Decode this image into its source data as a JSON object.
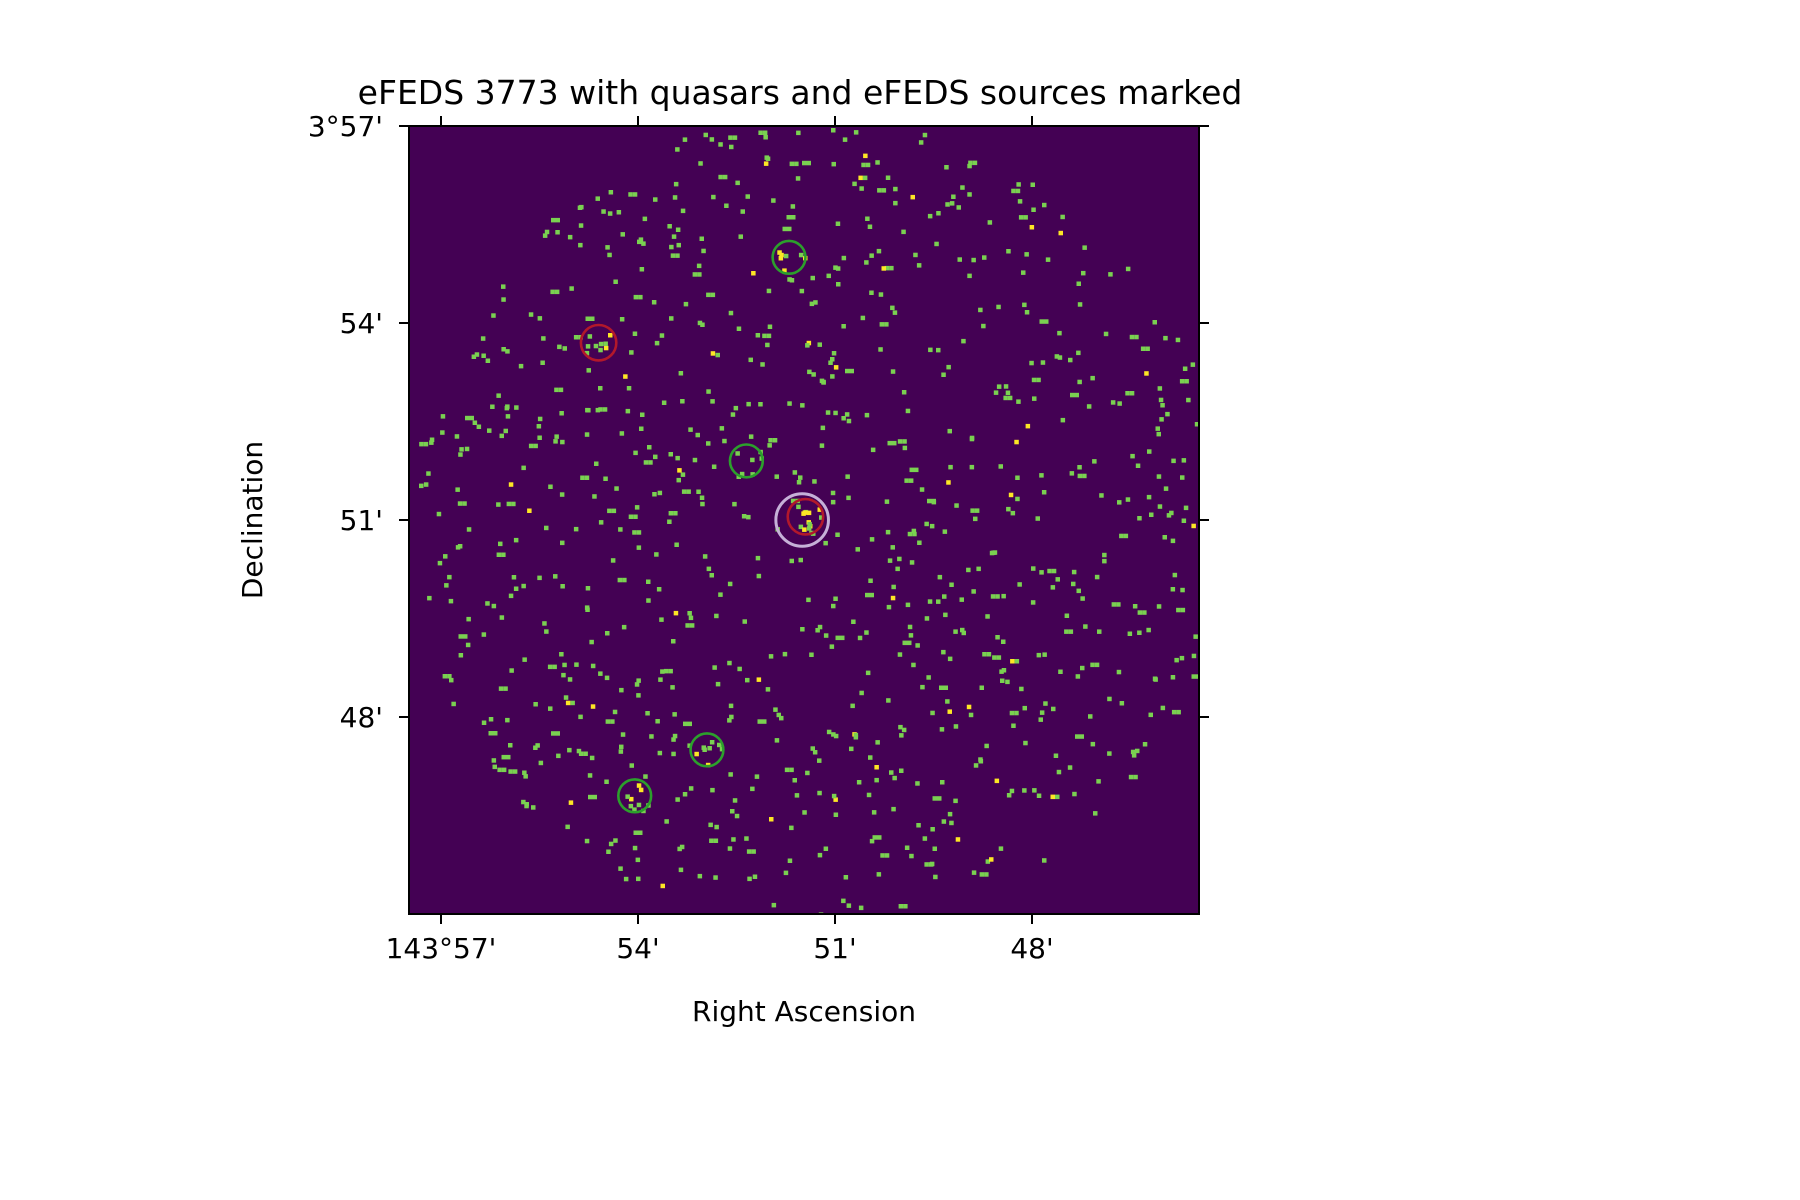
{
  "chart_data": {
    "type": "scatter",
    "title": "eFEDS 3773 with quasars and eFEDS sources marked",
    "xlabel": "Right Ascension",
    "ylabel": "Declination",
    "x_axis": {
      "unit": "arcmin offset from 143°00'",
      "ticks": [
        {
          "label": "143°57'",
          "value": 57
        },
        {
          "label": "54'",
          "value": 54
        },
        {
          "label": "51'",
          "value": 51
        },
        {
          "label": "48'",
          "value": 48
        }
      ],
      "range": [
        57.5,
        45.4
      ],
      "direction": "decreasing-to-right"
    },
    "y_axis": {
      "unit": "arcmin offset from 3°00'",
      "ticks": [
        {
          "label": "3°57'",
          "value": 57
        },
        {
          "label": "54'",
          "value": 54
        },
        {
          "label": "51'",
          "value": 51
        },
        {
          "label": "48'",
          "value": 48
        }
      ],
      "range": [
        45.0,
        57.0
      ]
    },
    "image": {
      "background_color": "#440154",
      "event_color": "#7ad151",
      "bright_color": "#fde725",
      "approx_event_count": 900,
      "field_center": [
        51.3,
        51.0
      ],
      "field_radius_arcmin": 6.2
    },
    "markers": [
      {
        "kind": "eFEDS source",
        "color": "#2ca02c",
        "ra": 51.7,
        "dec": 55.0,
        "radius": 0.25
      },
      {
        "kind": "eFEDS source",
        "color": "#2ca02c",
        "ra": 52.35,
        "dec": 51.9,
        "radius": 0.25
      },
      {
        "kind": "eFEDS source",
        "color": "#2ca02c",
        "ra": 52.95,
        "dec": 47.5,
        "radius": 0.25
      },
      {
        "kind": "eFEDS source",
        "color": "#2ca02c",
        "ra": 54.05,
        "dec": 46.8,
        "radius": 0.25
      },
      {
        "kind": "quasar",
        "color": "#b2182b",
        "ra": 54.6,
        "dec": 53.7,
        "radius": 0.27
      },
      {
        "kind": "quasar",
        "color": "#b2182b",
        "ra": 51.45,
        "dec": 51.05,
        "radius": 0.27
      },
      {
        "kind": "target",
        "color": "#c6b0d8",
        "ra": 51.5,
        "dec": 51.0,
        "radius": 0.4
      }
    ]
  }
}
